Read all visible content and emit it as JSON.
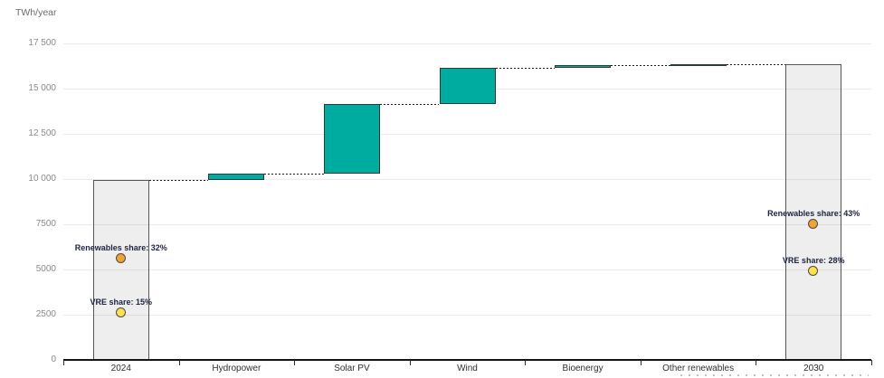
{
  "chart": {
    "unit_label": "TWh/year",
    "y_tick_labels": [
      "0",
      "2500",
      "5000",
      "7500",
      "10 000",
      "12 500",
      "15 000",
      "17 500"
    ]
  },
  "chart_data": {
    "type": "waterfall",
    "title": "",
    "ylabel": "TWh/year",
    "ylim": [
      0,
      17500
    ],
    "y_ticks": [
      0,
      2500,
      5000,
      7500,
      10000,
      12500,
      15000,
      17500
    ],
    "grid": true,
    "connector_style": "dotted",
    "categories": [
      "2024",
      "Hydropower",
      "Solar PV",
      "Wind",
      "Bioenergy",
      "Other renewables",
      "2030"
    ],
    "steps": [
      {
        "category": "2024",
        "role": "total",
        "value": 9950,
        "start": 0,
        "end": 9950,
        "fill": "rgba(125,125,125,0.13)",
        "border": "#555555"
      },
      {
        "category": "Hydropower",
        "role": "delta",
        "value": 350,
        "start": 9950,
        "end": 10300,
        "fill": "#00aba0",
        "border": "#2c3a38"
      },
      {
        "category": "Solar PV",
        "role": "delta",
        "value": 3850,
        "start": 10300,
        "end": 14150,
        "fill": "#00aba0",
        "border": "#2c3a38"
      },
      {
        "category": "Wind",
        "role": "delta",
        "value": 2000,
        "start": 14150,
        "end": 16150,
        "fill": "#00aba0",
        "border": "#2c3a38"
      },
      {
        "category": "Bioenergy",
        "role": "delta",
        "value": 150,
        "start": 16150,
        "end": 16300,
        "fill": "#00aba0",
        "border": "#2c3a38"
      },
      {
        "category": "Other renewables",
        "role": "delta",
        "value": 50,
        "start": 16300,
        "end": 16350,
        "fill": "#3a524f",
        "border": "#2c3a38"
      },
      {
        "category": "2030",
        "role": "total",
        "value": 16350,
        "start": 0,
        "end": 16350,
        "fill": "rgba(125,125,125,0.13)",
        "border": "#555555"
      }
    ],
    "markers": [
      {
        "category": "2024",
        "label": "Renewables share: 32%",
        "pct": 32,
        "dot_color": "#f0a233"
      },
      {
        "category": "2024",
        "label": "VRE share: 15%",
        "pct": 15,
        "dot_color": "#fde04a"
      },
      {
        "category": "2030",
        "label": "Renewables share: 43%",
        "pct": 43,
        "dot_color": "#f0a233"
      },
      {
        "category": "2030",
        "label": "VRE share: 28%",
        "pct": 28,
        "dot_color": "#fde04a"
      }
    ],
    "secondary_axis_note": "marker pct mapped so 100% = 17500 TWh",
    "colors": {
      "increase": "#00aba0",
      "other_renewables": "#3a524f",
      "total_fill": "#e9e9e9",
      "total_border": "#555555",
      "renewables_share_dot": "#f0a233",
      "vre_share_dot": "#fde04a",
      "axis": "#141414",
      "gridline": "#ebebeb"
    }
  }
}
